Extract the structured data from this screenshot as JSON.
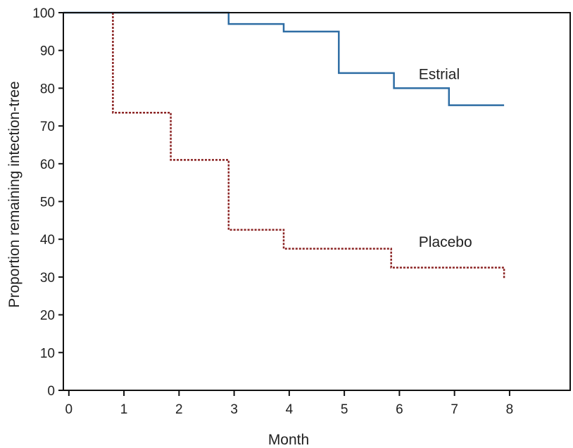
{
  "chart_data": {
    "type": "line",
    "step": true,
    "xlabel": "Month",
    "ylabel": "Proportion remaining intection-tree",
    "xlim": [
      -0.1,
      9.1
    ],
    "ylim": [
      0,
      100
    ],
    "x_ticks": [
      0,
      1,
      2,
      3,
      4,
      5,
      6,
      7,
      8
    ],
    "y_ticks": [
      0,
      10,
      20,
      30,
      40,
      50,
      60,
      70,
      80,
      90,
      100
    ],
    "x_tick_labels": [
      "0",
      "1",
      "2",
      "3",
      "4",
      "5",
      "6",
      "7",
      "8"
    ],
    "y_tick_labels": [
      "0",
      "10",
      "20",
      "30",
      "40",
      "50",
      "60",
      "70",
      "80",
      "90",
      "100"
    ],
    "series": [
      {
        "name": "Estrial",
        "color": "#2e6da4",
        "style": "solid",
        "x": [
          -0.1,
          2.9,
          2.9,
          3.9,
          3.9,
          4.9,
          4.9,
          5.9,
          5.9,
          6.9,
          6.9,
          7.9
        ],
        "y": [
          100,
          100,
          97,
          97,
          95,
          95,
          84,
          84,
          80,
          80,
          75.5,
          75.5
        ]
      },
      {
        "name": "Placebo",
        "color": "#8b2323",
        "style": "dotted",
        "x": [
          0.8,
          0.8,
          1.85,
          1.85,
          2.9,
          2.9,
          3.9,
          3.9,
          5.85,
          5.85,
          7.9,
          7.9
        ],
        "y": [
          100,
          73.5,
          73.5,
          61,
          61,
          42.5,
          42.5,
          37.5,
          37.5,
          32.5,
          32.5,
          29.5
        ]
      }
    ]
  }
}
